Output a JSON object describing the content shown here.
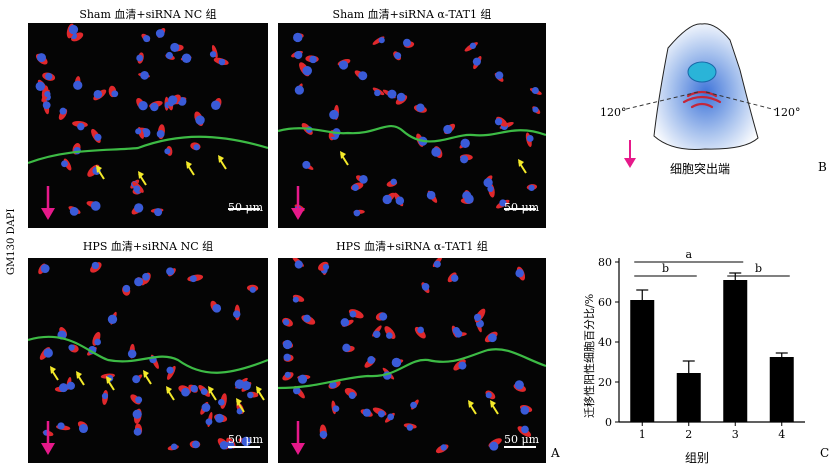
{
  "side_label": "GM130 DAPI",
  "panels": [
    {
      "title": "Sham 血清+siRNA NC 组",
      "scale_bar": "50 μm"
    },
    {
      "title": "Sham 血清+siRNA α-TAT1 组",
      "scale_bar": "50 μm"
    },
    {
      "title": "HPS 血清+siRNA NC 组",
      "scale_bar": "50 μm"
    },
    {
      "title": "HPS 血清+siRNA α-TAT1 组",
      "scale_bar": "50 μm"
    }
  ],
  "panel_labels": {
    "A": "A",
    "B": "B",
    "C": "C"
  },
  "diagram": {
    "angle_left": "120°",
    "angle_right": "120°",
    "caption": "细胞突出端"
  },
  "chart_data": {
    "type": "bar",
    "categories": [
      "1",
      "2",
      "3",
      "4"
    ],
    "values": [
      61,
      24.5,
      71,
      32.5
    ],
    "errors": [
      5,
      6,
      3.5,
      2
    ],
    "xlabel": "组别",
    "ylabel": "迁移性阳性细胞百分比/%",
    "ylim": [
      0,
      80
    ],
    "yticks": [
      0,
      20,
      40,
      60,
      80
    ],
    "significance": [
      {
        "label": "a",
        "from": "1",
        "to": "3"
      },
      {
        "label": "b",
        "from": "1",
        "to": "2"
      },
      {
        "label": "b",
        "from": "3",
        "to": "4"
      }
    ],
    "colors": {
      "bar": "#000000"
    }
  },
  "colors": {
    "nucleus": "#3a5bd8",
    "golgi": "#e0282c",
    "boundary": "#3dbb45",
    "arrow_yellow": "#f4ea2a",
    "arrow_magenta": "#e6198a"
  }
}
